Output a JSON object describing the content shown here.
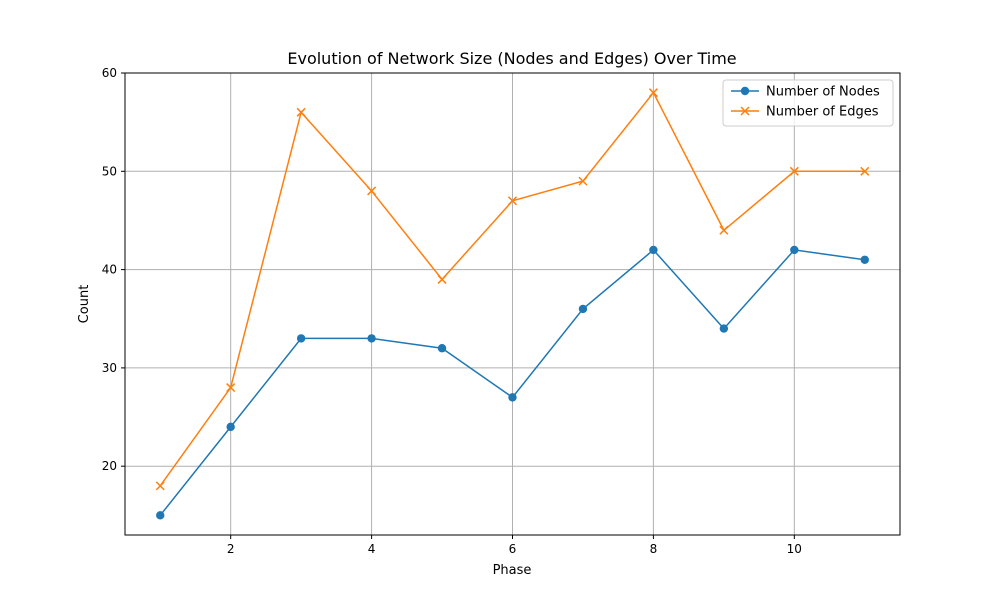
{
  "chart_data": {
    "type": "line",
    "title": "Evolution of Network Size (Nodes and Edges) Over Time",
    "xlabel": "Phase",
    "ylabel": "Count",
    "xlim": [
      0.5,
      11.5
    ],
    "ylim": [
      13,
      60
    ],
    "xticks": [
      2,
      4,
      6,
      8,
      10
    ],
    "yticks": [
      20,
      30,
      40,
      50,
      60
    ],
    "grid": true,
    "legend_position": "top-right",
    "x": [
      1,
      2,
      3,
      4,
      5,
      6,
      7,
      8,
      9,
      10,
      11
    ],
    "series": [
      {
        "name": "Number of Nodes",
        "marker": "circle",
        "color": "#1f77b4",
        "values": [
          15,
          24,
          33,
          33,
          32,
          27,
          36,
          42,
          34,
          42,
          41
        ]
      },
      {
        "name": "Number of Edges",
        "marker": "x",
        "color": "#ff7f0e",
        "values": [
          18,
          28,
          56,
          48,
          39,
          47,
          49,
          58,
          44,
          50,
          50
        ]
      }
    ]
  }
}
